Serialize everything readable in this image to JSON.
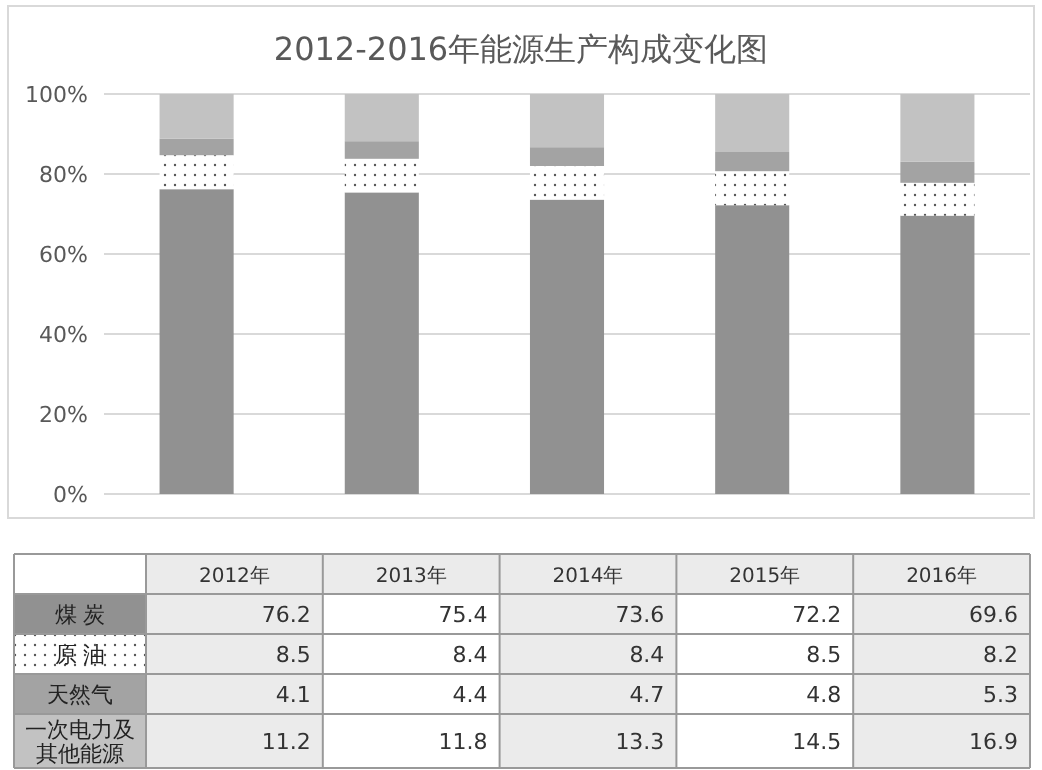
{
  "chart_data": {
    "type": "bar",
    "title": "2012-2016年能源生产构成变化图",
    "categories": [
      "2012年",
      "2013年",
      "2014年",
      "2015年",
      "2016年"
    ],
    "stacked": true,
    "series": [
      {
        "name": "煤 炭",
        "color": "#919191",
        "values": [
          76.2,
          75.4,
          73.6,
          72.2,
          69.6
        ]
      },
      {
        "name": "原 油",
        "color": "#ffffff",
        "values": [
          8.5,
          8.4,
          8.4,
          8.5,
          8.2
        ]
      },
      {
        "name": "天然气",
        "color": "#a3a3a3",
        "values": [
          4.1,
          4.4,
          4.7,
          4.8,
          5.3
        ]
      },
      {
        "name": "一次电力及其他能源",
        "color": "#c2c2c2",
        "values": [
          11.2,
          11.8,
          13.3,
          14.5,
          16.9
        ]
      }
    ],
    "ylim": [
      0,
      100
    ],
    "yticks": [
      {
        "value": 0,
        "label": "0%"
      },
      {
        "value": 20,
        "label": "20%"
      },
      {
        "value": 40,
        "label": "40%"
      },
      {
        "value": 60,
        "label": "60%"
      },
      {
        "value": 80,
        "label": "80%"
      },
      {
        "value": 100,
        "label": "100%"
      }
    ],
    "grid": "y",
    "data_labels": true
  }
}
